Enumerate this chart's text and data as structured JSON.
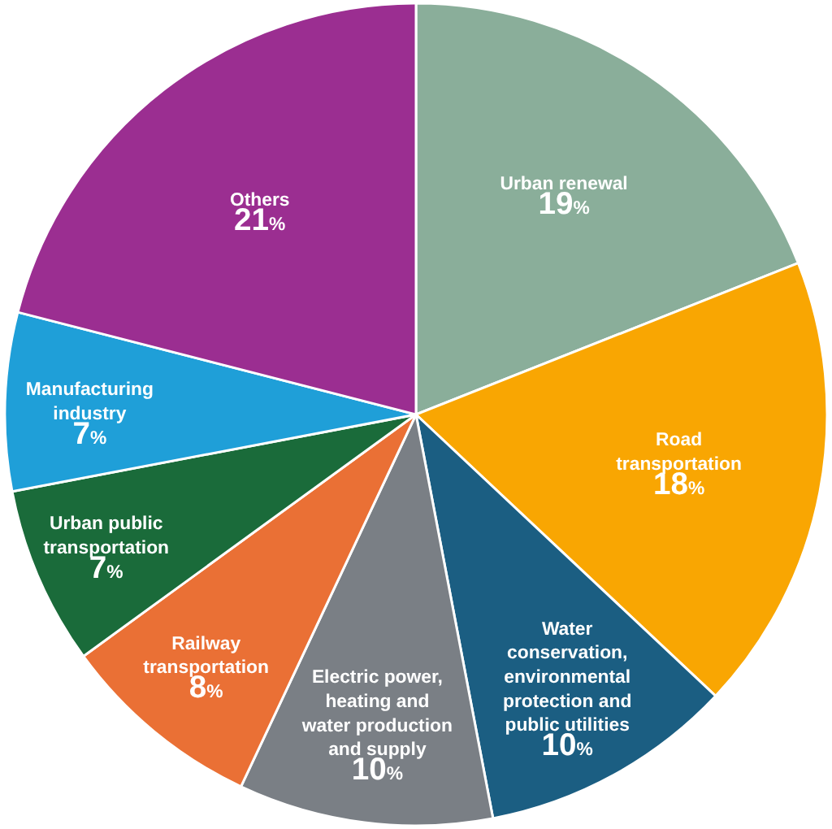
{
  "chart_data": {
    "type": "pie",
    "categories": [
      "Urban renewal",
      "Road transportation",
      "Water conservation, environmental protection and public utilities",
      "Electric power, heating and water production and supply",
      "Railway transportation",
      "Urban public transportation",
      "Manufacturing industry",
      "Others"
    ],
    "values": [
      19,
      18,
      10,
      10,
      8,
      7,
      7,
      21
    ],
    "colors": [
      "#8aae9a",
      "#f9a602",
      "#1b5e82",
      "#7a7f85",
      "#ea7035",
      "#1a6b3a",
      "#1f9fd8",
      "#9b2e91"
    ],
    "value_labels": [
      "19%",
      "18%",
      "10%",
      "10%",
      "8%",
      "7%",
      "7%",
      "21%"
    ]
  }
}
